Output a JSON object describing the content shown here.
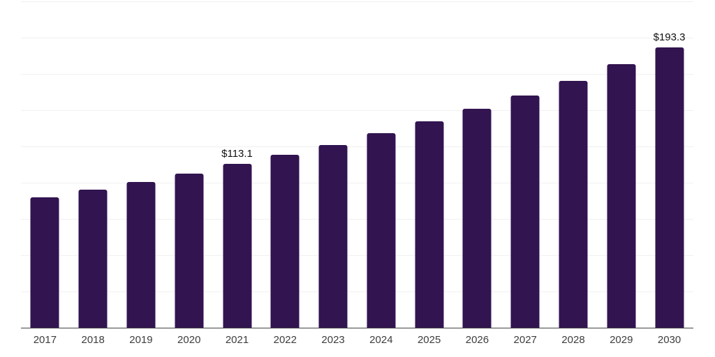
{
  "chart_data": {
    "type": "bar",
    "categories": [
      "2017",
      "2018",
      "2019",
      "2020",
      "2021",
      "2022",
      "2023",
      "2024",
      "2025",
      "2026",
      "2027",
      "2028",
      "2029",
      "2030"
    ],
    "values": [
      89.9,
      95.1,
      100.3,
      106.3,
      113.1,
      119.4,
      126.2,
      134.3,
      142.2,
      150.9,
      160.0,
      170.4,
      181.6,
      193.3
    ],
    "data_labels": {
      "2021": "$113.1",
      "2030": "$193.3"
    },
    "ylim": [
      0,
      225
    ],
    "gridline_step": 25,
    "grid": "horizontal",
    "legend": "none",
    "y_tick_labels_visible": false,
    "colors": {
      "bar": "#321450",
      "gridline": "#f0f0f0",
      "axis": "#424242",
      "tick_label": "#3d3d3d",
      "data_label": "#111111",
      "background": "#ffffff"
    }
  }
}
